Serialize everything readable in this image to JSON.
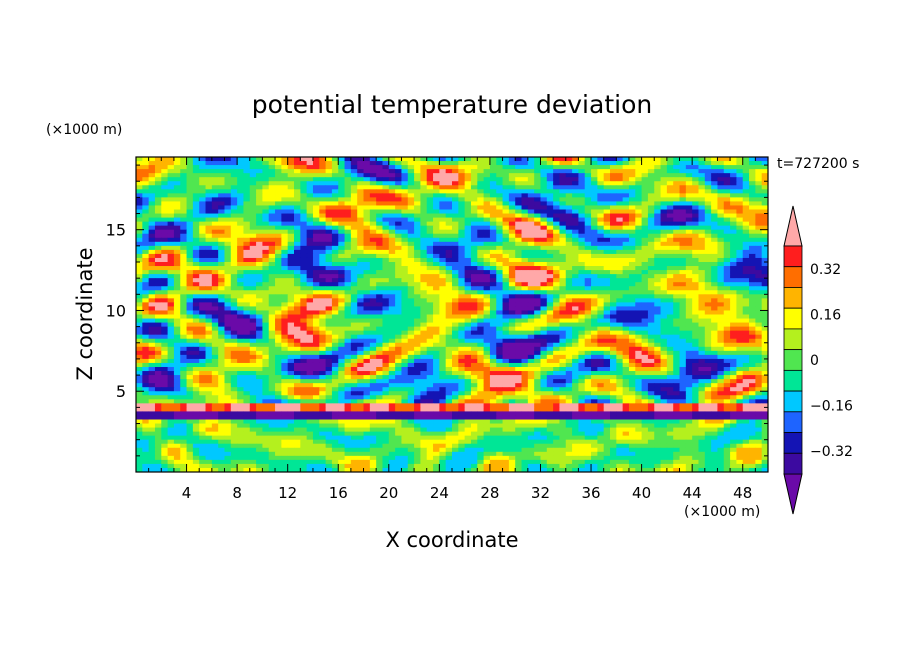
{
  "chart_data": {
    "type": "heatmap",
    "title": "potential temperature deviation",
    "time_label": "t=727200 s",
    "xlabel": "X coordinate",
    "ylabel": "Z coordinate",
    "x_unit": "(×1000 m)",
    "y_unit": "(×1000 m)",
    "xlim": [
      0,
      50
    ],
    "ylim": [
      0,
      19.5
    ],
    "x_ticks": [
      4,
      8,
      12,
      16,
      20,
      24,
      28,
      32,
      36,
      40,
      44,
      48
    ],
    "y_ticks": [
      5,
      10,
      15
    ],
    "colorbar": {
      "levels": [
        -0.48,
        -0.4,
        -0.32,
        -0.24,
        -0.16,
        -0.08,
        0,
        0.08,
        0.16,
        0.24,
        0.32,
        0.4,
        0.48
      ],
      "tick_labels": [
        {
          "value": 0.32,
          "label": "0.32"
        },
        {
          "value": 0.16,
          "label": "0.16"
        },
        {
          "value": 0,
          "label": "0"
        },
        {
          "value": -0.16,
          "label": "−0.16"
        },
        {
          "value": -0.32,
          "label": "−0.32"
        }
      ],
      "colors": [
        "#6a0aa8",
        "#3c0aa0",
        "#1414b4",
        "#1e64ff",
        "#00c8ff",
        "#00e696",
        "#50e650",
        "#b4f01e",
        "#ffff00",
        "#ffb400",
        "#ff6e00",
        "#ff1e1e",
        "#ffa8a8"
      ],
      "extend": "both"
    },
    "field_description": "Turbulent potential temperature deviation field; layered warm/cold anomalies above z≈3.2 km, weaker green/cyan field below"
  }
}
